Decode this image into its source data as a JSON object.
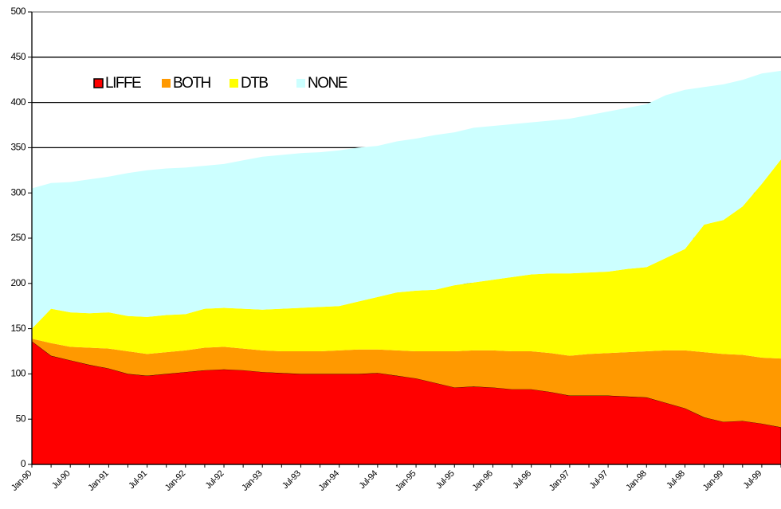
{
  "chart_data": {
    "type": "stacked_area",
    "categories": [
      "Jan-90",
      null,
      "Jul-90",
      null,
      "Jan-91",
      null,
      "Jul-91",
      null,
      "Jan-92",
      null,
      "Jul-92",
      null,
      "Jan-93",
      null,
      "Jul-93",
      null,
      "Jan-94",
      null,
      "Jul-94",
      null,
      "Jan-95",
      null,
      "Jul-95",
      null,
      "Jan-96",
      null,
      "Jul-96",
      null,
      "Jan-97",
      null,
      "Jul-97",
      null,
      "Jan-98",
      null,
      "Jul-98",
      null,
      "Jan-99",
      null,
      "Jul-99",
      null
    ],
    "series": [
      {
        "name": "LIFFE",
        "color": "#ff0000",
        "values": [
          136,
          120,
          115,
          110,
          106,
          100,
          98,
          100,
          102,
          104,
          105,
          104,
          102,
          101,
          100,
          100,
          100,
          100,
          101,
          98,
          95,
          90,
          85,
          86,
          85,
          83,
          83,
          80,
          76,
          76,
          76,
          75,
          74,
          68,
          62,
          52,
          47,
          48,
          45,
          41
        ]
      },
      {
        "name": "BOTH",
        "color": "#ff9900",
        "values": [
          3,
          14,
          15,
          19,
          22,
          25,
          24,
          24,
          24,
          25,
          25,
          24,
          24,
          24,
          25,
          25,
          26,
          27,
          26,
          28,
          30,
          35,
          40,
          40,
          41,
          42,
          42,
          43,
          44,
          46,
          47,
          49,
          51,
          58,
          64,
          72,
          75,
          73,
          73,
          76
        ]
      },
      {
        "name": "DTB",
        "color": "#ffff00",
        "values": [
          11,
          38,
          38,
          38,
          40,
          39,
          41,
          41,
          40,
          43,
          43,
          44,
          45,
          47,
          48,
          49,
          49,
          53,
          58,
          64,
          67,
          68,
          73,
          75,
          78,
          82,
          85,
          88,
          91,
          90,
          90,
          92,
          93,
          102,
          112,
          141,
          148,
          164,
          192,
          220
        ]
      },
      {
        "name": "NONE",
        "color": "#ccffff",
        "values": [
          155,
          139,
          144,
          148,
          150,
          158,
          162,
          162,
          162,
          158,
          159,
          164,
          169,
          170,
          171,
          171,
          172,
          170,
          167,
          167,
          168,
          171,
          169,
          171,
          170,
          169,
          168,
          169,
          171,
          174,
          177,
          178,
          180,
          180,
          176,
          152,
          150,
          140,
          122,
          98
        ]
      }
    ],
    "ylim": [
      0,
      500
    ],
    "yticks": [
      0,
      50,
      100,
      150,
      200,
      250,
      300,
      350,
      400,
      450,
      500
    ],
    "grid": true,
    "legend": "top-left"
  }
}
